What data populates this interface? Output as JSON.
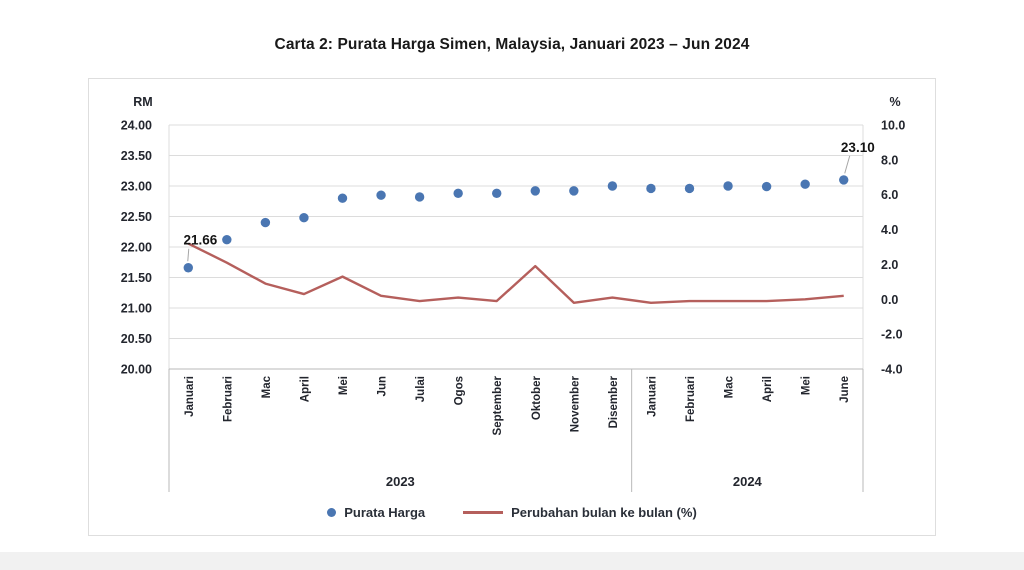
{
  "page": {
    "title": "Carta 2: Purata Harga Simen, Malaysia, Januari 2023 – Jun 2024"
  },
  "chart_data": {
    "type": "line",
    "title": "Carta 2: Purata Harga Simen, Malaysia, Januari 2023 – Jun 2024",
    "categories": [
      "Januari",
      "Februari",
      "Mac",
      "April",
      "Mei",
      "Jun",
      "Julai",
      "Ogos",
      "September",
      "Oktober",
      "November",
      "Disember",
      "Januari",
      "Februari",
      "Mac",
      "April",
      "Mei",
      "June"
    ],
    "year_groups": [
      {
        "label": "2023",
        "months": 12
      },
      {
        "label": "2024",
        "months": 6
      }
    ],
    "series": [
      {
        "name": "Purata Harga",
        "style": "points",
        "axis": "left",
        "color": "#4a76b2",
        "values": [
          21.66,
          22.12,
          22.4,
          22.48,
          22.8,
          22.85,
          22.82,
          22.88,
          22.88,
          22.92,
          22.92,
          23.0,
          22.96,
          22.96,
          23.0,
          22.99,
          23.03,
          23.1
        ]
      },
      {
        "name": "Perubahan bulan ke bulan (%)",
        "style": "line",
        "axis": "right",
        "color": "#b55f5c",
        "values": [
          3.2,
          2.1,
          0.9,
          0.3,
          1.3,
          0.2,
          -0.1,
          0.1,
          -0.1,
          1.9,
          -0.2,
          0.1,
          -0.2,
          -0.1,
          -0.1,
          -0.1,
          0.0,
          0.2
        ]
      }
    ],
    "left_axis": {
      "unit": "RM",
      "min": 20,
      "max": 24,
      "ticks": [
        "24.00",
        "23.50",
        "23.00",
        "22.50",
        "22.00",
        "21.50",
        "21.00",
        "20.50",
        "20.00"
      ]
    },
    "right_axis": {
      "unit": "%",
      "min": -4,
      "max": 10,
      "ticks": [
        "10.0",
        "8.0",
        "6.0",
        "4.0",
        "2.0",
        "0.0",
        "-2.0",
        "-4.0"
      ]
    },
    "annotations": [
      {
        "index": 0,
        "text": "21.66"
      },
      {
        "index": 17,
        "text": "23.10"
      }
    ],
    "legend": {
      "position": "bottom",
      "items": [
        {
          "label": "Purata Harga",
          "marker": "dot",
          "color": "#4a76b2"
        },
        {
          "label": "Perubahan bulan ke bulan (%)",
          "marker": "line",
          "color": "#b55f5c"
        }
      ]
    },
    "grid": true
  },
  "colors": {
    "grid": "#dcdcdc",
    "axis": "#b9b9b9",
    "leader": "#a6a6a6"
  }
}
